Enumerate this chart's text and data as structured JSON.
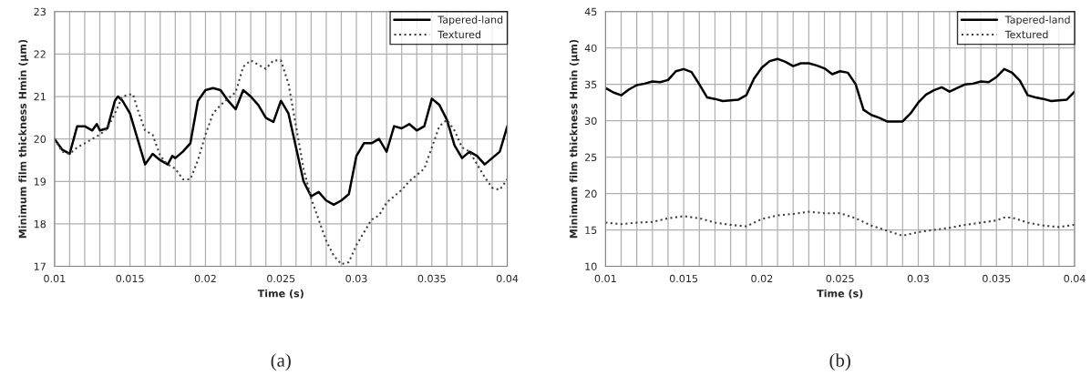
{
  "chart_data": [
    {
      "type": "line",
      "xlabel": "Time (s)",
      "ylabel": "Minimum film thickness Hmin (μm)",
      "annotations": [
        "(a)"
      ],
      "xlim": [
        0.01,
        0.04
      ],
      "ylim": [
        17,
        23
      ],
      "xticks": [
        0.01,
        {
          "value": 0.011,
          "label": null
        },
        {
          "value": 0.012,
          "label": null
        },
        {
          "value": 0.013,
          "label": null
        },
        {
          "value": 0.014,
          "label": null
        },
        0.015,
        {
          "value": 0.016,
          "label": null
        },
        {
          "value": 0.017,
          "label": null
        },
        {
          "value": 0.018,
          "label": null
        },
        {
          "value": 0.019,
          "label": null
        },
        0.02,
        {
          "value": 0.021,
          "label": null
        },
        {
          "value": 0.022,
          "label": null
        },
        {
          "value": 0.023,
          "label": null
        },
        {
          "value": 0.024,
          "label": null
        },
        0.025,
        {
          "value": 0.026,
          "label": null
        },
        {
          "value": 0.027,
          "label": null
        },
        {
          "value": 0.028,
          "label": null
        },
        {
          "value": 0.029,
          "label": null
        },
        0.03,
        {
          "value": 0.031,
          "label": null
        },
        {
          "value": 0.032,
          "label": null
        },
        {
          "value": 0.033,
          "label": null
        },
        {
          "value": 0.034,
          "label": null
        },
        0.035,
        {
          "value": 0.036,
          "label": null
        },
        {
          "value": 0.037,
          "label": null
        },
        {
          "value": 0.038,
          "label": null
        },
        {
          "value": 0.039,
          "label": null
        },
        0.04
      ],
      "yticks": [
        17,
        18,
        19,
        20,
        21,
        22,
        23
      ],
      "grid": true,
      "legend": "top right",
      "marker": "none",
      "series": [
        {
          "name": "Tapered-land",
          "color": "#000000",
          "line_style": "solid",
          "x": [
            0.01,
            0.0105,
            0.011,
            0.0115,
            0.012,
            0.0125,
            0.0128,
            0.013,
            0.0135,
            0.014,
            0.0142,
            0.0145,
            0.015,
            0.0155,
            0.016,
            0.0165,
            0.017,
            0.0175,
            0.0178,
            0.018,
            0.0185,
            0.019,
            0.0195,
            0.02,
            0.0205,
            0.021,
            0.0215,
            0.022,
            0.0225,
            0.023,
            0.0235,
            0.024,
            0.0245,
            0.025,
            0.0255,
            0.026,
            0.0265,
            0.027,
            0.0275,
            0.028,
            0.0285,
            0.029,
            0.0295,
            0.03,
            0.0305,
            0.031,
            0.0315,
            0.032,
            0.0325,
            0.033,
            0.0335,
            0.034,
            0.0345,
            0.035,
            0.0355,
            0.036,
            0.0365,
            0.037,
            0.0375,
            0.038,
            0.0385,
            0.039,
            0.0395,
            0.04
          ],
          "values": [
            20.0,
            19.75,
            19.65,
            20.3,
            20.3,
            20.2,
            20.35,
            20.2,
            20.25,
            20.9,
            21.0,
            20.9,
            20.6,
            20.0,
            19.4,
            19.65,
            19.5,
            19.4,
            19.6,
            19.55,
            19.7,
            19.9,
            20.9,
            21.15,
            21.2,
            21.15,
            20.9,
            20.7,
            21.15,
            21.0,
            20.8,
            20.5,
            20.4,
            20.9,
            20.6,
            19.8,
            19.0,
            18.65,
            18.75,
            18.55,
            18.45,
            18.55,
            18.7,
            19.6,
            19.9,
            19.9,
            20.0,
            19.7,
            20.3,
            20.25,
            20.35,
            20.2,
            20.3,
            20.95,
            20.8,
            20.45,
            19.85,
            19.55,
            19.7,
            19.6,
            19.4,
            19.55,
            19.7,
            20.3
          ]
        },
        {
          "name": "Textured",
          "color": "#404040",
          "line_style": "dotted",
          "x": [
            0.01,
            0.0105,
            0.011,
            0.0115,
            0.012,
            0.0125,
            0.013,
            0.0135,
            0.014,
            0.0145,
            0.015,
            0.0152,
            0.0155,
            0.016,
            0.0165,
            0.017,
            0.0175,
            0.018,
            0.0185,
            0.019,
            0.0195,
            0.02,
            0.0205,
            0.021,
            0.0215,
            0.022,
            0.0225,
            0.023,
            0.0235,
            0.024,
            0.0245,
            0.025,
            0.0255,
            0.026,
            0.0265,
            0.027,
            0.0275,
            0.028,
            0.0285,
            0.029,
            0.0295,
            0.03,
            0.0305,
            0.031,
            0.0315,
            0.032,
            0.0325,
            0.033,
            0.0335,
            0.034,
            0.0345,
            0.035,
            0.0355,
            0.036,
            0.0365,
            0.037,
            0.0375,
            0.038,
            0.0385,
            0.039,
            0.0395,
            0.04
          ],
          "values": [
            20.0,
            19.7,
            19.65,
            19.8,
            19.9,
            20.0,
            20.1,
            20.25,
            20.6,
            21.0,
            21.05,
            21.05,
            20.7,
            20.2,
            20.1,
            19.6,
            19.4,
            19.3,
            19.05,
            19.05,
            19.5,
            20.1,
            20.6,
            20.8,
            20.95,
            21.1,
            21.7,
            21.85,
            21.75,
            21.65,
            21.85,
            21.85,
            21.3,
            20.3,
            19.3,
            18.6,
            18.1,
            17.6,
            17.25,
            17.05,
            17.1,
            17.5,
            17.8,
            18.1,
            18.2,
            18.5,
            18.65,
            18.8,
            19.0,
            19.15,
            19.3,
            19.8,
            20.3,
            20.45,
            20.2,
            19.8,
            19.7,
            19.4,
            19.1,
            18.85,
            18.8,
            19.05
          ]
        }
      ]
    },
    {
      "type": "line",
      "xlabel": "Time (s)",
      "ylabel": "Minimum film thickness Hmin (μm)",
      "annotations": [
        "(b)"
      ],
      "xlim": [
        0.01,
        0.04
      ],
      "ylim": [
        10,
        45
      ],
      "xticks": [
        0.01,
        {
          "value": 0.011,
          "label": null
        },
        {
          "value": 0.012,
          "label": null
        },
        {
          "value": 0.013,
          "label": null
        },
        {
          "value": 0.014,
          "label": null
        },
        0.015,
        {
          "value": 0.016,
          "label": null
        },
        {
          "value": 0.017,
          "label": null
        },
        {
          "value": 0.018,
          "label": null
        },
        {
          "value": 0.019,
          "label": null
        },
        0.02,
        {
          "value": 0.021,
          "label": null
        },
        {
          "value": 0.022,
          "label": null
        },
        {
          "value": 0.023,
          "label": null
        },
        {
          "value": 0.024,
          "label": null
        },
        0.025,
        {
          "value": 0.026,
          "label": null
        },
        {
          "value": 0.027,
          "label": null
        },
        {
          "value": 0.028,
          "label": null
        },
        {
          "value": 0.029,
          "label": null
        },
        0.03,
        {
          "value": 0.031,
          "label": null
        },
        {
          "value": 0.032,
          "label": null
        },
        {
          "value": 0.033,
          "label": null
        },
        {
          "value": 0.034,
          "label": null
        },
        0.035,
        {
          "value": 0.036,
          "label": null
        },
        {
          "value": 0.037,
          "label": null
        },
        {
          "value": 0.038,
          "label": null
        },
        {
          "value": 0.039,
          "label": null
        },
        0.04
      ],
      "yticks": [
        10,
        15,
        20,
        25,
        30,
        35,
        40,
        45
      ],
      "grid": true,
      "legend": "top right",
      "marker": "none",
      "series": [
        {
          "name": "Tapered-land",
          "color": "#000000",
          "line_style": "solid",
          "x": [
            0.01,
            0.0105,
            0.011,
            0.0115,
            0.012,
            0.0125,
            0.013,
            0.0135,
            0.014,
            0.0145,
            0.015,
            0.0155,
            0.016,
            0.0165,
            0.017,
            0.0175,
            0.018,
            0.0185,
            0.019,
            0.0195,
            0.02,
            0.0205,
            0.021,
            0.0215,
            0.022,
            0.0225,
            0.023,
            0.0235,
            0.024,
            0.0245,
            0.025,
            0.0255,
            0.026,
            0.0265,
            0.027,
            0.0275,
            0.028,
            0.0285,
            0.029,
            0.0295,
            0.03,
            0.0305,
            0.031,
            0.0315,
            0.032,
            0.0325,
            0.033,
            0.0335,
            0.034,
            0.0345,
            0.035,
            0.0355,
            0.036,
            0.0365,
            0.037,
            0.0375,
            0.038,
            0.0385,
            0.039,
            0.0395,
            0.04
          ],
          "values": [
            34.5,
            33.9,
            33.5,
            34.3,
            34.9,
            35.1,
            35.4,
            35.3,
            35.6,
            36.8,
            37.1,
            36.7,
            35.0,
            33.2,
            33.0,
            32.7,
            32.8,
            32.9,
            33.5,
            35.8,
            37.3,
            38.2,
            38.5,
            38.1,
            37.5,
            37.9,
            37.9,
            37.6,
            37.2,
            36.4,
            36.8,
            36.6,
            35.0,
            31.5,
            30.8,
            30.4,
            29.9,
            29.9,
            29.9,
            31.0,
            32.5,
            33.6,
            34.2,
            34.6,
            34.0,
            34.5,
            35.0,
            35.1,
            35.4,
            35.3,
            36.0,
            37.1,
            36.6,
            35.5,
            33.5,
            33.2,
            33.0,
            32.7,
            32.8,
            32.9,
            34.0
          ]
        },
        {
          "name": "Textured",
          "color": "#404040",
          "line_style": "dotted",
          "x": [
            0.01,
            0.011,
            0.012,
            0.013,
            0.014,
            0.015,
            0.016,
            0.017,
            0.018,
            0.019,
            0.02,
            0.021,
            0.022,
            0.023,
            0.024,
            0.025,
            0.026,
            0.027,
            0.028,
            0.029,
            0.03,
            0.031,
            0.032,
            0.033,
            0.034,
            0.035,
            0.0355,
            0.036,
            0.037,
            0.038,
            0.039,
            0.04
          ],
          "values": [
            16.0,
            15.8,
            16.0,
            16.1,
            16.6,
            16.9,
            16.6,
            16.0,
            15.7,
            15.5,
            16.5,
            17.0,
            17.2,
            17.5,
            17.3,
            17.3,
            16.6,
            15.6,
            14.9,
            14.2,
            14.7,
            15.0,
            15.3,
            15.7,
            16.0,
            16.3,
            16.7,
            16.7,
            16.0,
            15.6,
            15.4,
            15.7
          ]
        }
      ]
    }
  ]
}
